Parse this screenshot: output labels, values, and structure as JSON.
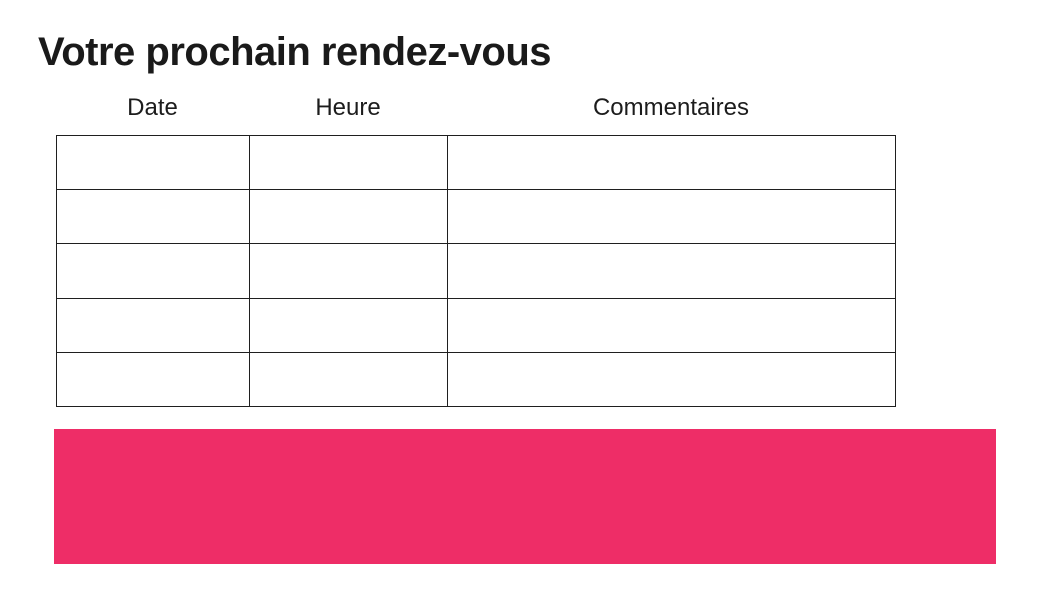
{
  "page": {
    "title": "Votre prochain rendez-vous",
    "background_color": "#ffffff"
  },
  "table": {
    "columns": [
      {
        "key": "date",
        "label": "Date"
      },
      {
        "key": "heure",
        "label": "Heure"
      },
      {
        "key": "commentaires",
        "label": "Commentaires"
      }
    ],
    "rows": [
      {
        "date": "",
        "heure": "",
        "commentaires": ""
      },
      {
        "date": "",
        "heure": "",
        "commentaires": ""
      },
      {
        "date": "",
        "heure": "",
        "commentaires": ""
      },
      {
        "date": "",
        "heure": "",
        "commentaires": ""
      },
      {
        "date": "",
        "heure": "",
        "commentaires": ""
      }
    ],
    "border_color": "#1f1f1f"
  },
  "banner": {
    "text": "",
    "color": "#ee2d67"
  }
}
